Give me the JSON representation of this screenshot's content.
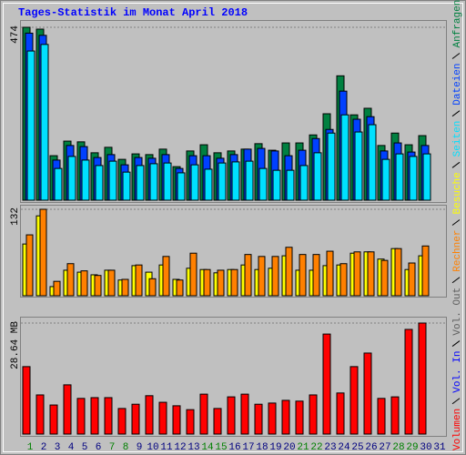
{
  "chart_data": [
    {
      "type": "bar",
      "title": "Tages-Statistik im Monat April 2018",
      "ylim": [
        0,
        474
      ],
      "yticks": [
        474
      ],
      "series": [
        {
          "name": "Anfragen",
          "color": "#008040",
          "values": [
            474,
            469,
            122,
            162,
            160,
            130,
            145,
            112,
            127,
            125,
            140,
            92,
            135,
            152,
            130,
            135,
            140,
            155,
            137,
            157,
            157,
            179,
            237,
            341,
            234,
            252,
            150,
            184,
            152,
            177,
            null
          ]
        },
        {
          "name": "Dateien",
          "color": "#0040ff",
          "values": [
            458,
            452,
            110,
            150,
            147,
            117,
            125,
            97,
            117,
            115,
            125,
            87,
            122,
            122,
            115,
            125,
            140,
            142,
            135,
            122,
            137,
            169,
            194,
            299,
            222,
            229,
            135,
            157,
            132,
            150,
            null
          ]
        },
        {
          "name": "Seiten",
          "color": "#00e0ff",
          "values": [
            409,
            427,
            87,
            120,
            110,
            95,
            107,
            77,
            95,
            100,
            102,
            75,
            97,
            85,
            102,
            105,
            107,
            87,
            82,
            82,
            95,
            130,
            184,
            234,
            187,
            207,
            112,
            127,
            120,
            127,
            null
          ]
        }
      ]
    },
    {
      "type": "bar",
      "ylim": [
        0,
        132
      ],
      "yticks": [
        132
      ],
      "series": [
        {
          "name": "Besuche",
          "color": "#ffff00",
          "values": [
            79,
            122,
            14,
            39,
            36,
            32,
            39,
            24,
            46,
            36,
            47,
            25,
            42,
            40,
            35,
            40,
            47,
            40,
            42,
            61,
            39,
            39,
            46,
            47,
            65,
            67,
            56,
            72,
            40,
            61,
            null
          ]
        },
        {
          "name": "Rechner",
          "color": "#ff8000",
          "values": [
            93,
            132,
            22,
            49,
            38,
            31,
            39,
            25,
            47,
            26,
            60,
            24,
            65,
            40,
            39,
            40,
            63,
            60,
            60,
            74,
            63,
            63,
            68,
            49,
            67,
            67,
            54,
            72,
            50,
            76,
            null
          ]
        }
      ]
    },
    {
      "type": "bar",
      "ylim": [
        0,
        28.64
      ],
      "yticks": [
        {
          "value": 28.64,
          "label": "28.64 MB"
        }
      ],
      "categories": [
        "1",
        "2",
        "3",
        "4",
        "5",
        "6",
        "7",
        "8",
        "9",
        "10",
        "11",
        "12",
        "13",
        "14",
        "15",
        "16",
        "17",
        "18",
        "19",
        "20",
        "21",
        "22",
        "23",
        "24",
        "25",
        "26",
        "27",
        "28",
        "29",
        "30",
        "31"
      ],
      "category_colors": [
        "#008000",
        "#000080",
        "#000080",
        "#000080",
        "#000080",
        "#000080",
        "#008000",
        "#008000",
        "#000080",
        "#000080",
        "#000080",
        "#000080",
        "#000080",
        "#008000",
        "#008000",
        "#000080",
        "#000080",
        "#000080",
        "#000080",
        "#000080",
        "#008000",
        "#008000",
        "#000080",
        "#000080",
        "#000080",
        "#000080",
        "#000080",
        "#008000",
        "#008000",
        "#000080",
        "#000080"
      ],
      "series": [
        {
          "name": "Vol. Out",
          "color": "#606060",
          "values": [
            0,
            0,
            0,
            0,
            0,
            0,
            0,
            0,
            0,
            0,
            0,
            0,
            0,
            0,
            0,
            0,
            0,
            0,
            0,
            0,
            0,
            0,
            0,
            0,
            0,
            0,
            0,
            0,
            0,
            0,
            null
          ]
        },
        {
          "name": "Vol. In",
          "color": "#0000ff",
          "values": [
            0,
            0,
            0,
            0,
            0,
            0,
            0,
            0,
            0,
            0,
            0,
            0,
            0,
            0,
            0,
            0,
            0,
            0,
            0,
            0,
            0,
            0,
            0,
            0,
            0,
            0,
            0,
            0,
            0,
            0,
            null
          ]
        },
        {
          "name": "Volumen",
          "color": "#ff0000",
          "values": [
            17.4,
            10.1,
            7.5,
            12.7,
            9.2,
            9.4,
            9.4,
            6.6,
            7.7,
            9.9,
            8.2,
            7.3,
            6.3,
            10.3,
            6.6,
            9.6,
            10.3,
            7.7,
            8.0,
            8.7,
            8.5,
            10.1,
            25.8,
            10.6,
            17.4,
            20.9,
            9.2,
            9.6,
            27.0,
            28.64,
            null
          ]
        }
      ]
    }
  ]
}
